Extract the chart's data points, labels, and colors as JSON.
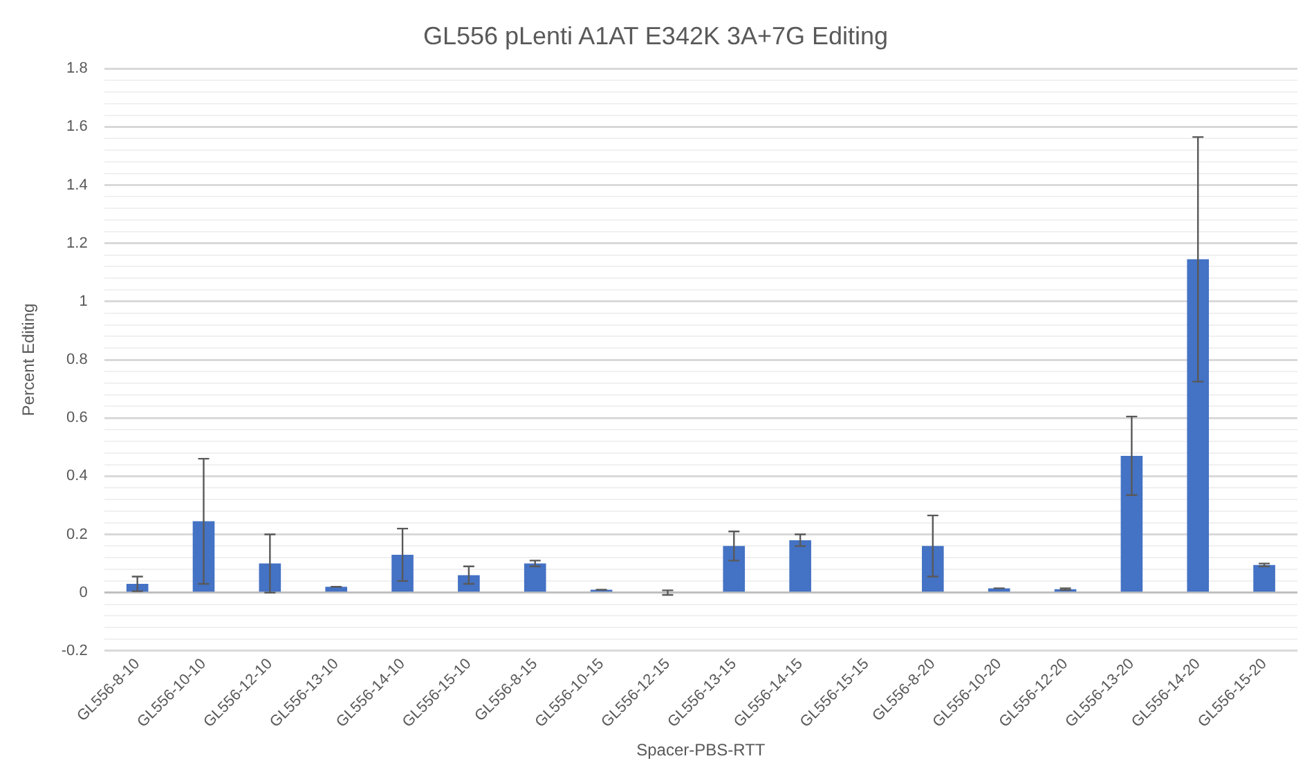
{
  "chart_data": {
    "type": "bar",
    "title": "GL556 pLenti A1AT E342K 3A+7G Editing",
    "xlabel": "Spacer-PBS-RTT",
    "ylabel": "Percent Editing",
    "categories": [
      "GL556-8-10",
      "GL556-10-10",
      "GL556-12-10",
      "GL556-13-10",
      "GL556-14-10",
      "GL556-15-10",
      "GL556-8-15",
      "GL556-10-15",
      "GL556-12-15",
      "GL556-13-15",
      "GL556-14-15",
      "GL556-15-15",
      "GL556-8-20",
      "GL556-10-20",
      "GL556-12-20",
      "GL556-13-20",
      "GL556-14-20",
      "GL556-15-20"
    ],
    "values": [
      0.03,
      0.245,
      0.1,
      0.02,
      0.13,
      0.06,
      0.1,
      0.01,
      0,
      0.16,
      0.18,
      0,
      0.16,
      0.015,
      0.012,
      0.47,
      1.145,
      0.095
    ],
    "errors": [
      0.025,
      0.215,
      0.1,
      0,
      0.09,
      0.03,
      0.01,
      0,
      0.008,
      0.05,
      0.02,
      null,
      0.105,
      0,
      0.003,
      0.135,
      0.42,
      0.005
    ],
    "color": "#4472c4",
    "ylim": [
      -0.2,
      1.8
    ],
    "yticks": [
      -0.2,
      {
        "value": -0.16,
        "label": null
      },
      {
        "value": -0.12,
        "label": null
      },
      {
        "value": -0.08,
        "label": null
      },
      {
        "value": -0.04,
        "label": null
      },
      0,
      {
        "value": 0.04,
        "label": null
      },
      {
        "value": 0.08,
        "label": null
      },
      {
        "value": 0.12,
        "label": null
      },
      {
        "value": 0.16,
        "label": null
      },
      0.2,
      {
        "value": 0.24,
        "label": null
      },
      {
        "value": 0.28,
        "label": null
      },
      {
        "value": 0.32,
        "label": null
      },
      {
        "value": 0.36,
        "label": null
      },
      0.4,
      {
        "value": 0.44,
        "label": null
      },
      {
        "value": 0.48,
        "label": null
      },
      {
        "value": 0.52,
        "label": null
      },
      {
        "value": 0.56,
        "label": null
      },
      0.6,
      {
        "value": 0.64,
        "label": null
      },
      {
        "value": 0.68,
        "label": null
      },
      {
        "value": 0.72,
        "label": null
      },
      {
        "value": 0.76,
        "label": null
      },
      0.8,
      {
        "value": 0.84,
        "label": null
      },
      {
        "value": 0.88,
        "label": null
      },
      {
        "value": 0.92,
        "label": null
      },
      {
        "value": 0.96,
        "label": null
      },
      1,
      {
        "value": 1.04,
        "label": null
      },
      {
        "value": 1.08,
        "label": null
      },
      {
        "value": 1.12,
        "label": null
      },
      {
        "value": 1.16,
        "label": null
      },
      1.2,
      {
        "value": 1.24,
        "label": null
      },
      {
        "value": 1.28,
        "label": null
      },
      {
        "value": 1.32,
        "label": null
      },
      {
        "value": 1.36,
        "label": null
      },
      1.4,
      {
        "value": 1.44,
        "label": null
      },
      {
        "value": 1.48,
        "label": null
      },
      {
        "value": 1.52,
        "label": null
      },
      {
        "value": 1.56,
        "label": null
      },
      1.6,
      {
        "value": 1.64,
        "label": null
      },
      {
        "value": 1.68,
        "label": null
      },
      {
        "value": 1.72,
        "label": null
      },
      {
        "value": 1.76,
        "label": null
      },
      1.8
    ],
    "grid": "y",
    "legend": false
  }
}
